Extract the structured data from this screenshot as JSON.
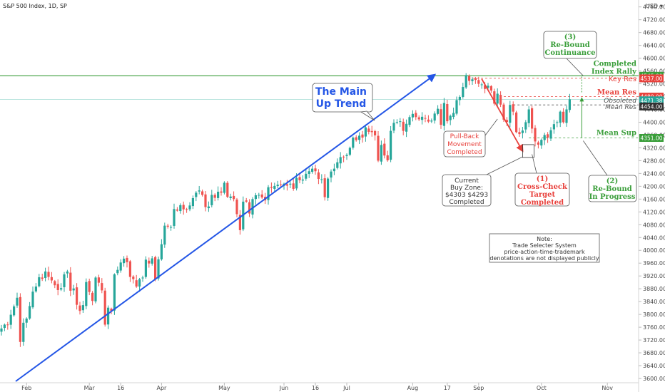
{
  "header": {
    "title": "S&P 500 Index, 1D, SP"
  },
  "axis": {
    "currency": "USD"
  },
  "colors": {
    "up": "#26a69a",
    "down": "#ef5350",
    "trend": "#2456e6",
    "green": "#3a9e3a",
    "red": "#e8413c",
    "gray": "#555555"
  },
  "chart_data": {
    "type": "candlestick",
    "title": "S&P 500 Index, 1D, SP",
    "xlabel": "",
    "ylabel": "",
    "ylim": [
      3595,
      4770
    ],
    "y_ticks": [
      3600,
      3640,
      3680,
      3720,
      3760,
      3800,
      3840,
      3880,
      3920,
      3960,
      4000,
      4040,
      4080,
      4120,
      4160,
      4200,
      4240,
      4280,
      4320,
      4360,
      4400,
      4440,
      4480,
      4520,
      4560,
      4600,
      4640,
      4680,
      4720,
      4760
    ],
    "x_ticks": [
      {
        "label": "Feb",
        "i": 8
      },
      {
        "label": "Mar",
        "i": 28
      },
      {
        "label": "16",
        "i": 38
      },
      {
        "label": "Apr",
        "i": 51
      },
      {
        "label": "May",
        "i": 71
      },
      {
        "label": "Jun",
        "i": 90
      },
      {
        "label": "16",
        "i": 100
      },
      {
        "label": "Jul",
        "i": 110
      },
      {
        "label": "Aug",
        "i": 131
      },
      {
        "label": "17",
        "i": 142
      },
      {
        "label": "Sep",
        "i": 152
      },
      {
        "label": "Oct",
        "i": 172
      },
      {
        "label": "Nov",
        "i": 193
      }
    ],
    "closes": [
      3756,
      3768,
      3768,
      3799,
      3825,
      3852,
      3714,
      3774,
      3787,
      3826,
      3871,
      3887,
      3916,
      3911,
      3934,
      3917,
      3906,
      3891,
      3876,
      3882,
      3925,
      3934,
      3874,
      3881,
      3830,
      3811,
      3829,
      3901,
      3870,
      3842,
      3915,
      3899,
      3875,
      3768,
      3821,
      3811,
      3925,
      3939,
      3962,
      3974,
      3963,
      3917,
      3910,
      3887,
      3910,
      3915,
      3971,
      3959,
      3975,
      3909,
      3972,
      4019,
      4077,
      4074,
      4073,
      4129,
      4124,
      4141,
      4128,
      4128,
      4140,
      4163,
      4180,
      4187,
      4173,
      4135,
      4137,
      4173,
      4164,
      4183,
      4180,
      4211,
      4167,
      4168,
      4160,
      4113,
      4063,
      4152,
      4152,
      4115,
      4160,
      4172,
      4173,
      4165,
      4156,
      4197,
      4195,
      4201,
      4205,
      4204,
      4208,
      4202,
      4208,
      4192,
      4226,
      4219,
      4221,
      4239,
      4247,
      4255,
      4247,
      4223,
      4222,
      4166,
      4224,
      4246,
      4255,
      4275,
      4291,
      4291,
      4298,
      4320,
      4352,
      4344,
      4358,
      4352,
      4384,
      4370,
      4369,
      4359,
      4280,
      4329,
      4296,
      4281,
      4373,
      4398,
      4401,
      4403,
      4373,
      4395,
      4416,
      4426,
      4416,
      4409,
      4417,
      4412,
      4402,
      4405,
      4427,
      4442,
      4392,
      4460,
      4403,
      4420,
      4429,
      4469,
      4479,
      4510,
      4547,
      4529,
      4534,
      4532,
      4520,
      4518,
      4504,
      4514,
      4499,
      4458,
      4489,
      4455,
      4408,
      4401,
      4454,
      4433,
      4369,
      4363,
      4374,
      4400,
      4440,
      4380,
      4340,
      4330,
      4345,
      4360,
      4352,
      4375,
      4394,
      4400,
      4433,
      4400,
      4440,
      4471.38
    ]
  },
  "levels": {
    "completed_index_rally": {
      "label": "Completed\nIndex Rally",
      "price": "4545.00",
      "value": 4545
    },
    "key_res": {
      "label": "Key Res",
      "price": "4537.00",
      "value": 4537
    },
    "mean_res": {
      "label": "Mean Res",
      "price": "4480.00",
      "value": 4480
    },
    "last_price": {
      "price": "4471.38",
      "value": 4471.38
    },
    "obsoleted": {
      "label": "Obsoleted",
      "value": 4454
    },
    "mean_res_gray": {
      "label": "Mean Res",
      "price": "4454.00",
      "value": 4454
    },
    "mean_sup": {
      "label": "Mean Sup",
      "price": "4351.00",
      "value": 4351
    }
  },
  "annotations": {
    "main_trend": {
      "line1": "The Main",
      "line2": "Up Trend"
    },
    "rebound_continuance": {
      "line1": "(3)",
      "line2": "Re-Bound",
      "line3": "Continuance"
    },
    "pullback": {
      "line1": "Pull-Back",
      "line2": "Movement",
      "line3": "Completed"
    },
    "buy_zone": {
      "line1": "Current",
      "line2": "Buy Zone:",
      "line3": "$4303 $4293",
      "line4": "Completed"
    },
    "cross_check": {
      "line1": "(1)",
      "line2": "Cross-Check",
      "line3": "Target",
      "line4": "Completed"
    },
    "rebound_progress": {
      "line1": "(2)",
      "line2": "Re-Bound",
      "line3": "In Progress"
    },
    "note": {
      "line1": "Note:",
      "line2": "Trade Selecter System",
      "line3": "price-action-time-trademark",
      "line4": "denotations are not displayed publicly"
    }
  }
}
